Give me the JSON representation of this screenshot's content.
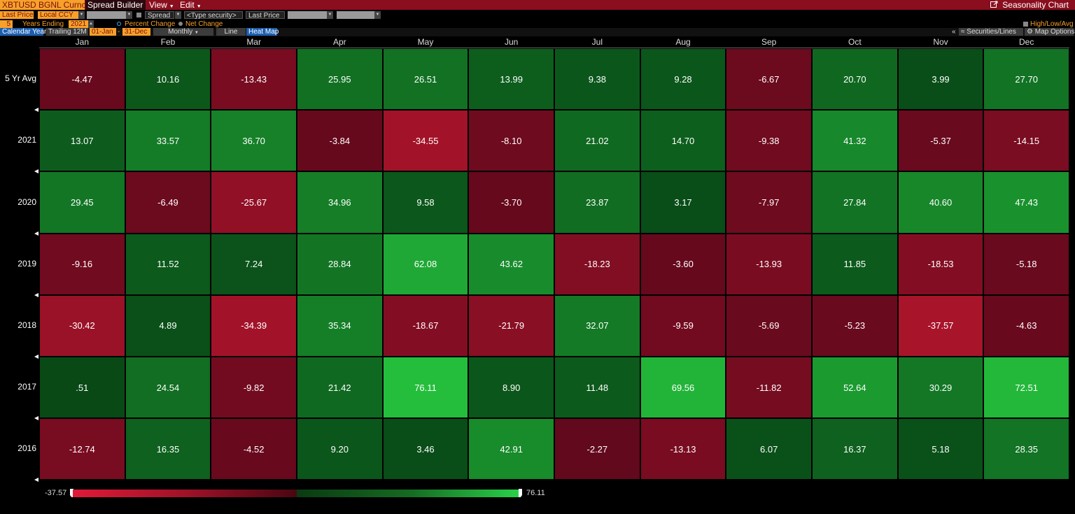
{
  "toolbar": {
    "security": "XBTUSD BGNL Curncy",
    "spread_builder": "Spread Builder",
    "view": "View",
    "edit": "Edit",
    "seasonality_chart": "Seasonality Chart"
  },
  "row2": {
    "field1": "Last Price",
    "ccy": "Local CCY",
    "spread": "Spread",
    "type_security": "<Type security>",
    "field2": "Last Price"
  },
  "row3": {
    "years": "5",
    "years_ending": "Years Ending",
    "end_year": "2021",
    "percent_change": "Percent Change",
    "net_change": "Net Change",
    "high_low_avg": "High/Low/Avg"
  },
  "row4": {
    "calendar_year": "Calendar Year",
    "trailing": "Trailing 12M",
    "start": "01-Jan",
    "end": "31-Dec",
    "period": "Monthly",
    "line": "Line",
    "heat_map": "Heat Map",
    "collapse": "«",
    "securities_lines": "Securities/Lines",
    "map_options": "Map Options"
  },
  "colors": {
    "accent_orange": "#f7a02a",
    "toolbar_red": "#8a0e1e",
    "neg_max": "#e01a38",
    "pos_max": "#2ad24a"
  },
  "chart_data": {
    "type": "heatmap",
    "columns": [
      "Jan",
      "Feb",
      "Mar",
      "Apr",
      "May",
      "Jun",
      "Jul",
      "Aug",
      "Sep",
      "Oct",
      "Nov",
      "Dec"
    ],
    "rows": [
      {
        "label": "5 Yr Avg",
        "values": [
          "-4.47",
          "10.16",
          "-13.43",
          "25.95",
          "26.51",
          "13.99",
          "9.38",
          "9.28",
          "-6.67",
          "20.70",
          "3.99",
          "27.70"
        ]
      },
      {
        "label": "2021",
        "values": [
          "13.07",
          "33.57",
          "36.70",
          "-3.84",
          "-34.55",
          "-8.10",
          "21.02",
          "14.70",
          "-9.38",
          "41.32",
          "-5.37",
          "-14.15"
        ]
      },
      {
        "label": "2020",
        "values": [
          "29.45",
          "-6.49",
          "-25.67",
          "34.96",
          "9.58",
          "-3.70",
          "23.87",
          "3.17",
          "-7.97",
          "27.84",
          "40.60",
          "47.43"
        ]
      },
      {
        "label": "2019",
        "values": [
          "-9.16",
          "11.52",
          "7.24",
          "28.84",
          "62.08",
          "43.62",
          "-18.23",
          "-3.60",
          "-13.93",
          "11.85",
          "-18.53",
          "-5.18"
        ]
      },
      {
        "label": "2018",
        "values": [
          "-30.42",
          "4.89",
          "-34.39",
          "35.34",
          "-18.67",
          "-21.79",
          "32.07",
          "-9.59",
          "-5.69",
          "-5.23",
          "-37.57",
          "-4.63"
        ]
      },
      {
        "label": "2017",
        "values": [
          ".51",
          "24.54",
          "-9.82",
          "21.42",
          "76.11",
          "8.90",
          "11.48",
          "69.56",
          "-11.82",
          "52.64",
          "30.29",
          "72.51"
        ]
      },
      {
        "label": "2016",
        "values": [
          "-12.74",
          "16.35",
          "-4.52",
          "9.20",
          "3.46",
          "42.91",
          "-2.27",
          "-13.13",
          "6.07",
          "16.37",
          "5.18",
          "28.35"
        ]
      }
    ],
    "legend_min": "-37.57",
    "legend_max": "76.11"
  }
}
